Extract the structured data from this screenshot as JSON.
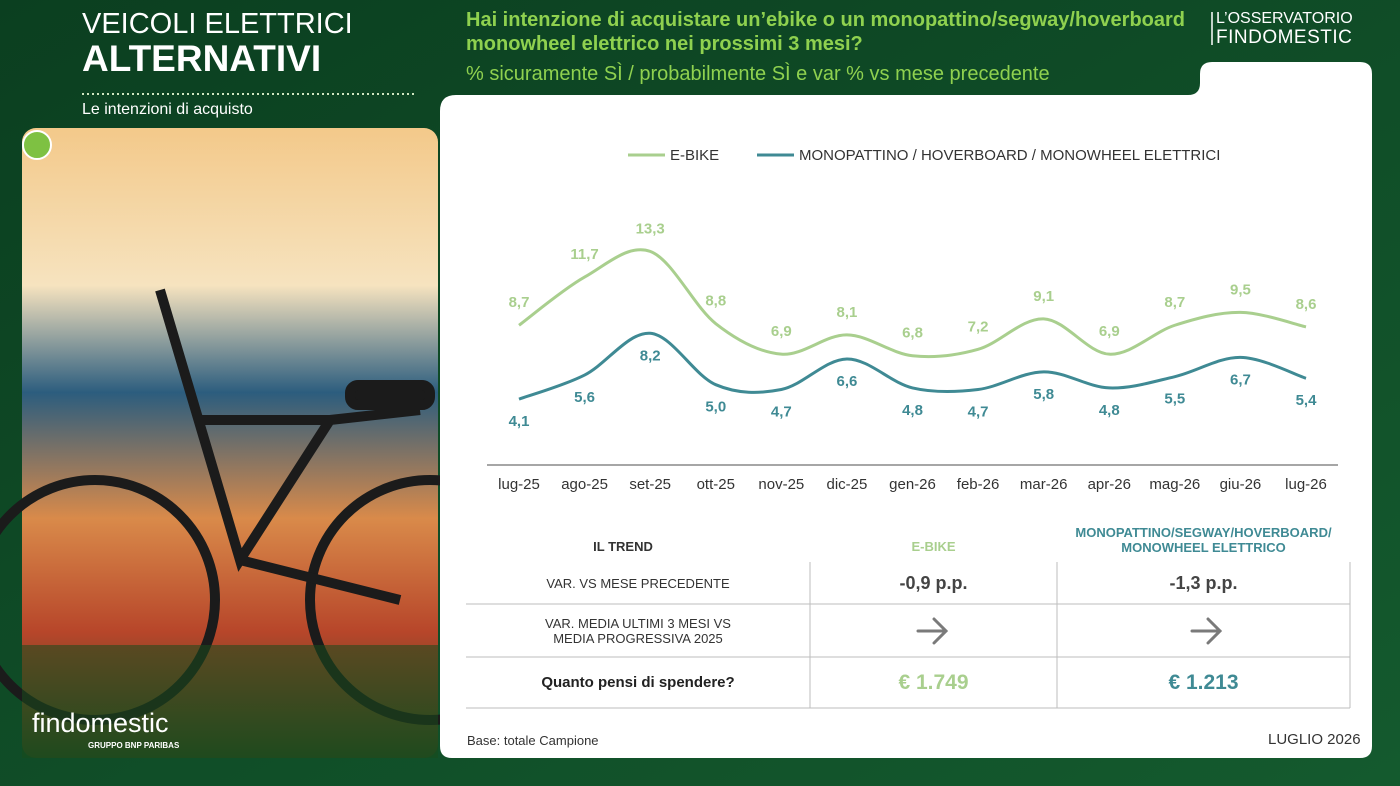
{
  "header": {
    "title_line1": "VEICOLI ELETTRICI",
    "title_line2": "ALTERNATIVI",
    "subtitle": "Le intenzioni di acquisto",
    "brand_line1": "L’OSSERVATORIO",
    "brand_line2": "FINDOMESTIC"
  },
  "chart_data": {
    "type": "line",
    "title": "Hai intenzione di acquistare un’ebike o un monopattino/segway/hoverboard monowheel elettrico nei prossimi 3 mesi?",
    "subtitle": "% sicuramente SÌ / probabilmente SÌ e var % vs mese precedente",
    "categories": [
      "lug-25",
      "ago-25",
      "set-25",
      "ott-25",
      "nov-25",
      "dic-25",
      "gen-26",
      "feb-26",
      "mar-26",
      "apr-26",
      "mag-26",
      "giu-26",
      "lug-26"
    ],
    "series": [
      {
        "name": "E-BIKE",
        "color": "#a9cf8e",
        "values": [
          8.7,
          11.7,
          13.3,
          8.8,
          6.9,
          8.1,
          6.8,
          7.2,
          9.1,
          6.9,
          8.7,
          9.5,
          8.6
        ],
        "value_labels": [
          "8,7",
          "11,7",
          "13,3",
          "8,8",
          "6,9",
          "8,1",
          "6,8",
          "7,2",
          "9,1",
          "6,9",
          "8,7",
          "9,5",
          "8,6"
        ]
      },
      {
        "name": "MONOPATTINO / HOVERBOARD / MONOWHEEL ELETTRICI",
        "color": "#3f8a94",
        "values": [
          4.1,
          5.6,
          8.2,
          5.0,
          4.7,
          6.6,
          4.8,
          4.7,
          5.8,
          4.8,
          5.5,
          6.7,
          5.4
        ],
        "value_labels": [
          "4,1",
          "5,6",
          "8,2",
          "5,0",
          "4,7",
          "6,6",
          "4,8",
          "4,7",
          "5,8",
          "4,8",
          "5,5",
          "6,7",
          "5,4"
        ]
      }
    ],
    "ylim": [
      0,
      16
    ],
    "legend": "top",
    "grid": false
  },
  "table": {
    "header": [
      "IL TREND",
      "E-BIKE",
      "MONOPATTINO/SEGWAY/HOVERBOARD/ MONOWHEEL ELETTRICO"
    ],
    "rows": [
      [
        "VAR. VS MESE PRECEDENTE",
        "-0,9 p.p.",
        "-1,3 p.p."
      ],
      [
        "VAR.  MEDIA ULTIMI 3 MESI VS MEDIA PROGRESSIVA  2025"
      ],
      [
        "Quanto pensi di spendere?",
        "€ 1.749",
        "€ 1.213"
      ]
    ]
  },
  "footer": {
    "base": "Base: totale Campione",
    "date": "LUGLIO 2026"
  },
  "logo": {
    "name": "findomestic",
    "group": "GRUPPO BNP PARIBAS"
  }
}
